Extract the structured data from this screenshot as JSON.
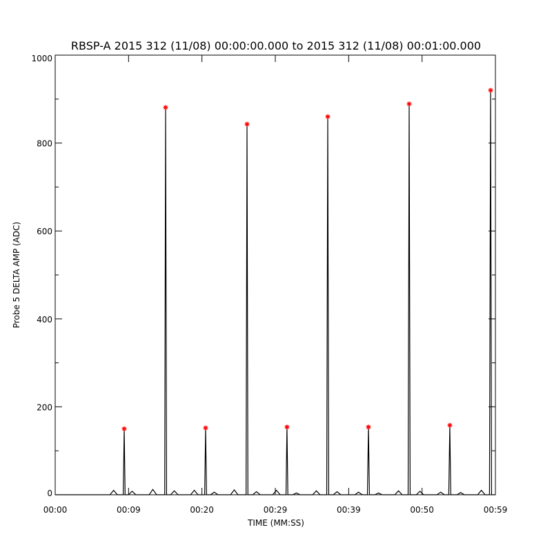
{
  "chart_data": {
    "type": "line",
    "title": "RBSP-A 2015 312 (11/08) 00:00:00.000 to 2015 312 (11/08) 00:01:00.000",
    "xlabel": "TIME (MM:SS)",
    "ylabel": "Probe 5 DELTA AMP (ADC)",
    "xlim": [
      0,
      59.5
    ],
    "ylim": [
      0,
      1000
    ],
    "x_tick_labels": [
      "00:00",
      "00:09",
      "00:20",
      "00:29",
      "00:39",
      "00:50",
      "00:59"
    ],
    "y_ticks": [
      0,
      200,
      400,
      600,
      800,
      1000
    ],
    "grid": false,
    "colors": {
      "line": "#000000",
      "peak_markers": "#ff0000"
    },
    "series": [
      {
        "x": [
          0,
          7.4,
          7.9,
          8.4,
          9.2,
          9.33,
          9.45,
          9.9,
          10.4,
          10.9,
          12.7,
          13.2,
          13.7,
          14.8,
          14.92,
          15.05,
          15.6,
          16.1,
          16.6,
          18.3,
          18.8,
          19.3,
          20.2,
          20.33,
          20.45,
          21.0,
          21.5,
          22.0,
          23.7,
          24.2,
          24.7,
          25.8,
          25.93,
          26.05,
          26.7,
          27.2,
          27.7,
          29.4,
          29.9,
          30.4,
          31.2,
          31.33,
          31.45,
          32.1,
          32.6,
          33.1,
          34.8,
          35.3,
          35.8,
          36.7,
          36.84,
          36.97,
          37.6,
          38.1,
          38.6,
          40.5,
          41.0,
          41.5,
          42.2,
          42.34,
          42.47,
          43.2,
          43.7,
          44.2,
          45.9,
          46.4,
          46.9,
          47.7,
          47.84,
          47.97,
          48.8,
          49.3,
          49.8,
          51.6,
          52.1,
          52.6,
          53.2,
          53.34,
          53.47,
          54.3,
          54.8,
          55.3,
          57.1,
          57.6,
          58.1,
          58.7,
          58.85,
          58.98,
          59.5
        ],
        "y": [
          0,
          0,
          10,
          0,
          0,
          150,
          0,
          0,
          8,
          0,
          0,
          12,
          0,
          0,
          881,
          0,
          0,
          9,
          0,
          0,
          10,
          0,
          0,
          152,
          0,
          0,
          6,
          0,
          0,
          11,
          0,
          0,
          843,
          0,
          0,
          7,
          0,
          0,
          10,
          0,
          0,
          154,
          0,
          0,
          4,
          0,
          0,
          9,
          0,
          0,
          860,
          0,
          0,
          7,
          0,
          0,
          6,
          0,
          0,
          154,
          0,
          0,
          4,
          0,
          0,
          9,
          0,
          0,
          889,
          0,
          0,
          8,
          0,
          0,
          6,
          0,
          0,
          158,
          0,
          0,
          5,
          0,
          0,
          10,
          0,
          0,
          920,
          0,
          0
        ]
      }
    ],
    "peaks": {
      "x": [
        9.33,
        14.92,
        20.33,
        25.93,
        31.33,
        36.84,
        42.34,
        47.84,
        53.34,
        58.85
      ],
      "y": [
        150,
        881,
        152,
        843,
        154,
        860,
        154,
        889,
        158,
        920
      ]
    }
  }
}
